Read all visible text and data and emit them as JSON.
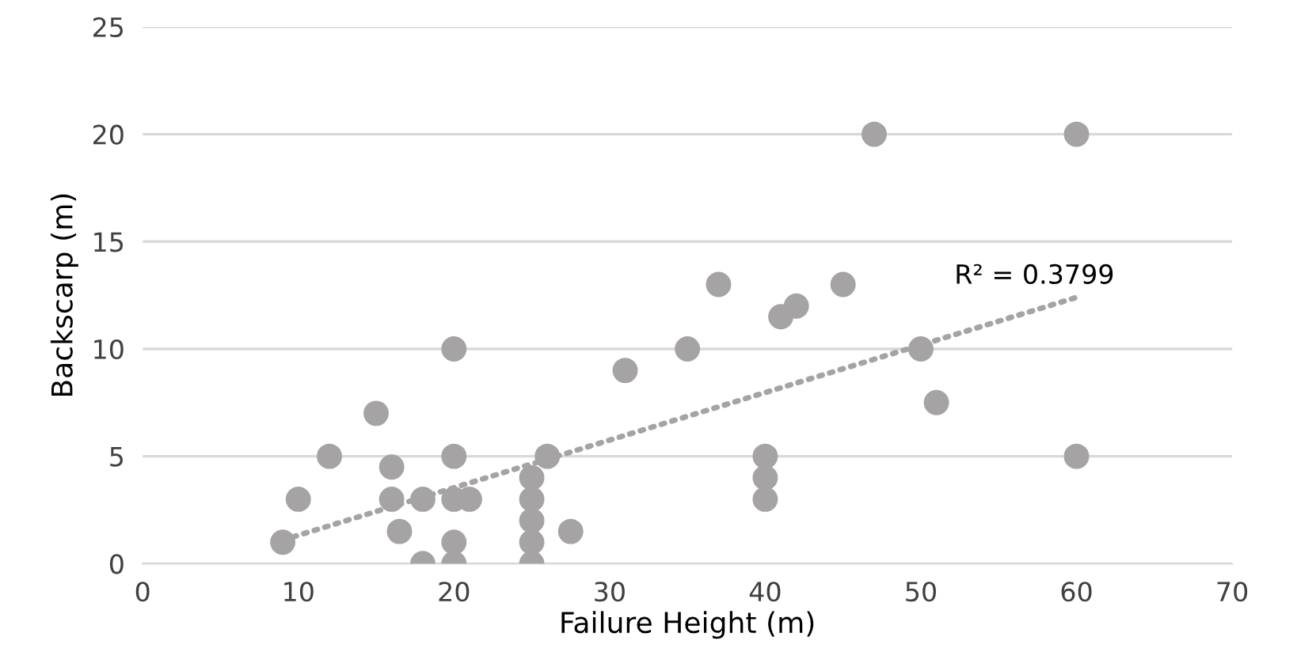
{
  "chart_data": {
    "type": "scatter",
    "xlabel": "Failure Height (m)",
    "ylabel": "Backscarp (m)",
    "xlim": [
      0,
      70
    ],
    "xticks": [
      0,
      10,
      20,
      30,
      40,
      50,
      60,
      70
    ],
    "ylim": [
      0,
      25
    ],
    "yticks": [
      0,
      5,
      10,
      15,
      20,
      25
    ],
    "grid": "y",
    "series": [
      {
        "color": "#a5a3a3",
        "marker": "circle",
        "x": [
          9,
          10,
          12,
          15,
          16,
          16,
          16.5,
          18,
          18,
          20,
          20,
          20,
          20,
          20,
          21,
          25,
          25,
          25,
          25,
          25,
          26,
          27.5,
          31,
          35,
          37,
          40,
          40,
          40,
          41,
          42,
          45,
          47,
          50,
          51,
          60,
          60
        ],
        "values": [
          1,
          3,
          5,
          7,
          4.5,
          3,
          1.5,
          3,
          0,
          10,
          5,
          3,
          1,
          0,
          3,
          4,
          3,
          2,
          1,
          0,
          5,
          1.5,
          9,
          10,
          13,
          5,
          4,
          3,
          11.5,
          12,
          13,
          20,
          10,
          7.5,
          20,
          5
        ]
      },
      {
        "type": "line",
        "color": "#a5a3a3",
        "line_style": "dotted",
        "x": [
          9,
          60
        ],
        "values": [
          1.1,
          12.4
        ]
      }
    ],
    "annotations": [
      "R² = 0.3799"
    ]
  }
}
